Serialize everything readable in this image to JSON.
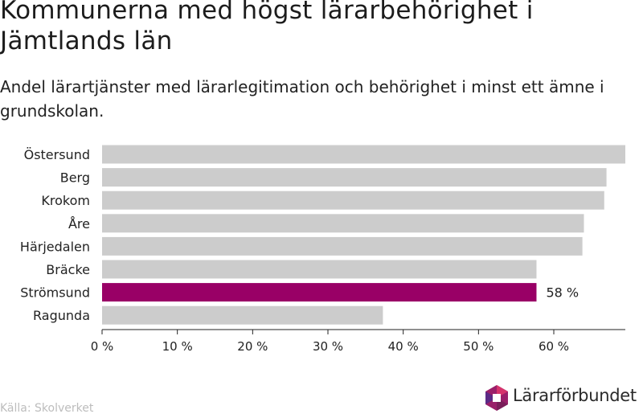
{
  "title": "Kommunerna med högst lärarbehörighet i Jämtlands län",
  "subtitle": "Andel lärartjänster med lärarlegitimation och behörighet i minst ett ämne i grundskolan.",
  "source": "Källa: Skolverket",
  "logo": {
    "name": "Lärarförbundet",
    "icon": "hexagon-logo-icon"
  },
  "colors": {
    "bar": "#cccccc",
    "highlight": "#990066",
    "axis": "#222222"
  },
  "chart_data": {
    "type": "bar",
    "orientation": "horizontal",
    "categories": [
      "Östersund",
      "Berg",
      "Krokom",
      "Åre",
      "Härjedalen",
      "Bräcke",
      "Strömsund",
      "Ragunda"
    ],
    "values": [
      69.5,
      67,
      66.7,
      64,
      63.8,
      57.7,
      57.7,
      37.3
    ],
    "highlight_index": 6,
    "data_labels": [
      null,
      null,
      null,
      null,
      null,
      null,
      "58 %",
      null
    ],
    "xlim": [
      0,
      69.5
    ],
    "xticks": [
      0,
      10,
      20,
      30,
      40,
      50,
      60
    ],
    "xtick_labels": [
      "0 %",
      "10 %",
      "20 %",
      "30 %",
      "40 %",
      "50 %",
      "60 %"
    ],
    "xlabel": "",
    "ylabel": "",
    "grid": false
  }
}
